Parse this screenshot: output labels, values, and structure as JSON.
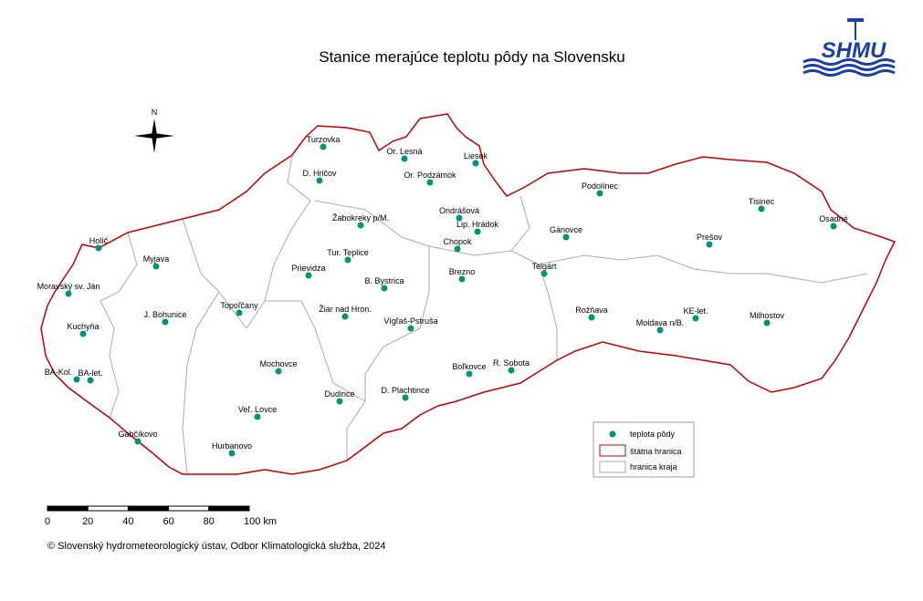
{
  "title": "Stanice merajúce teplotu pôdy na Slovensku",
  "logo": "SHMU",
  "north": "N",
  "stations": [
    "Turzovka",
    "Or. Lesná",
    "Liesek",
    "D. Hričov",
    "Or. Podzámok",
    "Podolínec",
    "Tisinec",
    "Žabokreky p/M.",
    "Ondrášová",
    "Lip. Hrádok",
    "Osadné",
    "Gánovce",
    "Prešov",
    "Holíč",
    "Chopok",
    "Tur. Teplice",
    "Myjava",
    "Telgárt",
    "Prievidza",
    "Brezno",
    "Moravský sv. Ján",
    "B. Bystrica",
    "Topoľčany",
    "Rožňava",
    "KE-let.",
    "Žiar nad Hron.",
    "J. Bohunice",
    "Milhostov",
    "Moldava n/B.",
    "Kuchyňa",
    "Vígľaš-Pstruša",
    "Mochovce",
    "R. Sobota",
    "Boľkovce",
    "BA-Kol.",
    "BA-let.",
    "D. Plachtince",
    "Dudince",
    "Veľ. Lovce",
    "Gabčíkovo",
    "Hurbanovo"
  ],
  "legend": [
    "teplota pôdy",
    "štátna hranica",
    "hranica kraja"
  ],
  "scale_bar": [
    "0",
    "20",
    "40",
    "60",
    "80",
    "100 km"
  ],
  "copyright": "© Slovenský hydrometeorologický ústav, Odbor Klimatologická služba, 2024"
}
